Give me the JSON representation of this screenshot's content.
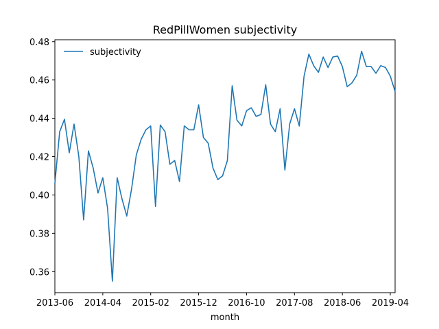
{
  "chart_data": {
    "type": "line",
    "title": "RedPillWomen subjectivity",
    "xlabel": "month",
    "ylabel": "",
    "legend": {
      "placement": "upper-left"
    },
    "grid": false,
    "x_tick_labels": [
      "2013-06",
      "2014-04",
      "2015-02",
      "2015-12",
      "2016-10",
      "2017-08",
      "2018-06",
      "2019-04"
    ],
    "y_ticks": [
      0.36,
      0.38,
      0.4,
      0.42,
      0.44,
      0.46,
      0.48
    ],
    "ylim": [
      0.349,
      0.481
    ],
    "xlim": [
      "2013-06",
      "2019-05"
    ],
    "series": [
      {
        "name": "subjectivity",
        "color": "#1f77b4",
        "x": [
          "2013-06",
          "2013-07",
          "2013-08",
          "2013-09",
          "2013-10",
          "2013-11",
          "2013-12",
          "2014-01",
          "2014-02",
          "2014-03",
          "2014-04",
          "2014-05",
          "2014-06",
          "2014-07",
          "2014-08",
          "2014-09",
          "2014-10",
          "2014-11",
          "2014-12",
          "2015-01",
          "2015-02",
          "2015-03",
          "2015-04",
          "2015-05",
          "2015-06",
          "2015-07",
          "2015-08",
          "2015-09",
          "2015-10",
          "2015-11",
          "2015-12",
          "2016-01",
          "2016-02",
          "2016-03",
          "2016-04",
          "2016-05",
          "2016-06",
          "2016-07",
          "2016-08",
          "2016-09",
          "2016-10",
          "2016-11",
          "2016-12",
          "2017-01",
          "2017-02",
          "2017-03",
          "2017-04",
          "2017-05",
          "2017-06",
          "2017-07",
          "2017-08",
          "2017-09",
          "2017-10",
          "2017-11",
          "2017-12",
          "2018-01",
          "2018-02",
          "2018-03",
          "2018-04",
          "2018-05",
          "2018-06",
          "2018-07",
          "2018-08",
          "2018-09",
          "2018-10",
          "2018-11",
          "2018-12",
          "2019-01",
          "2019-02",
          "2019-03",
          "2019-04",
          "2019-05"
        ],
        "values": [
          0.406,
          0.433,
          0.4395,
          0.422,
          0.437,
          0.42,
          0.387,
          0.423,
          0.414,
          0.401,
          0.409,
          0.393,
          0.355,
          0.409,
          0.398,
          0.389,
          0.403,
          0.421,
          0.429,
          0.434,
          0.436,
          0.394,
          0.4365,
          0.433,
          0.416,
          0.418,
          0.407,
          0.436,
          0.434,
          0.434,
          0.447,
          0.43,
          0.427,
          0.414,
          0.408,
          0.41,
          0.418,
          0.457,
          0.439,
          0.436,
          0.444,
          0.4455,
          0.441,
          0.442,
          0.4575,
          0.437,
          0.433,
          0.445,
          0.413,
          0.437,
          0.445,
          0.436,
          0.462,
          0.4735,
          0.4675,
          0.464,
          0.472,
          0.4665,
          0.472,
          0.4725,
          0.467,
          0.4565,
          0.4585,
          0.4625,
          0.475,
          0.467,
          0.467,
          0.4635,
          0.4675,
          0.4665,
          0.462,
          0.454
        ]
      }
    ]
  }
}
